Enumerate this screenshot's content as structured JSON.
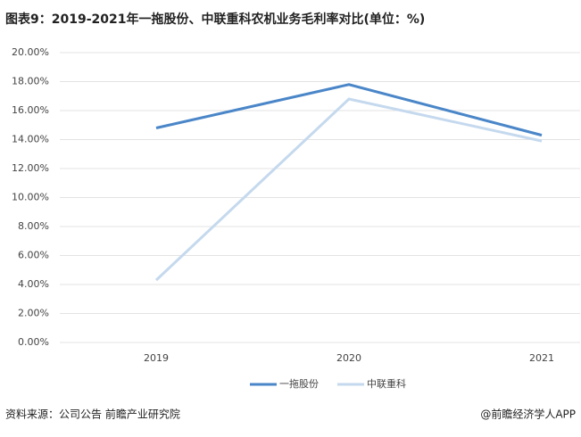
{
  "chart_data": {
    "type": "line",
    "title": "图表9：2019-2021年一拖股份、中联重科农机业务毛利率对比(单位：%)",
    "categories": [
      "2019",
      "2020",
      "2021"
    ],
    "series": [
      {
        "name": "一拖股份",
        "color": "#4a86c8",
        "values": [
          14.8,
          17.8,
          14.3
        ]
      },
      {
        "name": "中联重科",
        "color": "#c5d9ee",
        "values": [
          4.3,
          16.8,
          13.9
        ]
      }
    ],
    "ylim": [
      0,
      20
    ],
    "yticks": [
      {
        "value": 0,
        "label": "0.00%"
      },
      {
        "value": 2,
        "label": "2.00%"
      },
      {
        "value": 4,
        "label": "4.00%"
      },
      {
        "value": 6,
        "label": "6.00%"
      },
      {
        "value": 8,
        "label": "8.00%"
      },
      {
        "value": 10,
        "label": "10.00%"
      },
      {
        "value": 12,
        "label": "12.00%"
      },
      {
        "value": 14,
        "label": "14.00%"
      },
      {
        "value": 16,
        "label": "16.00%"
      },
      {
        "value": 18,
        "label": "18.00%"
      },
      {
        "value": 20,
        "label": "20.00%"
      }
    ],
    "grid": true,
    "legend": "bottom",
    "source": "资料来源：公司公告 前瞻产业研究院",
    "credit": "@前瞻经济学人APP"
  }
}
